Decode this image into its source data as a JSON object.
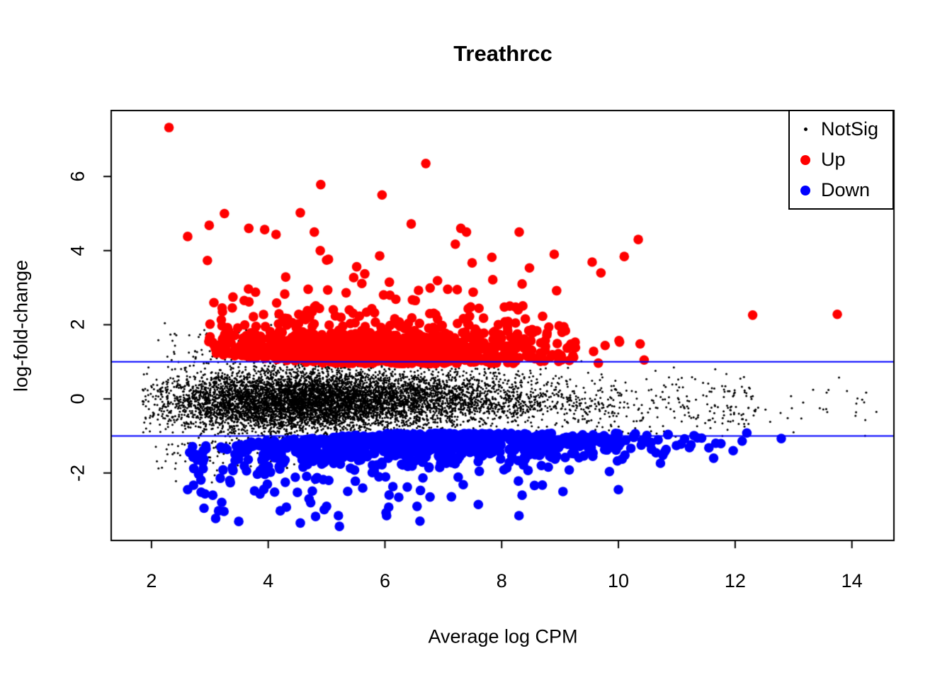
{
  "chart_data": {
    "type": "scatter",
    "title": "Treathrcc",
    "xlabel": "Average log CPM",
    "ylabel": "log-fold-change",
    "x_axis": {
      "range": [
        1.31,
        14.72
      ],
      "ticks": [
        2,
        4,
        6,
        8,
        10,
        12,
        14
      ],
      "tick_labels": [
        "2",
        "4",
        "6",
        "8",
        "10",
        "12",
        "14"
      ]
    },
    "y_axis": {
      "range": [
        -3.82,
        7.78
      ],
      "ticks": [
        -2,
        0,
        2,
        4,
        6
      ],
      "tick_labels": [
        "-2",
        "0",
        "2",
        "4",
        "6"
      ]
    },
    "grid": false,
    "background": "#ffffff",
    "box_color": "#000000",
    "hlines": {
      "values": [
        1,
        -1
      ],
      "color": "#0000ff",
      "width": 2
    },
    "legend": {
      "position": "topright",
      "entries": [
        {
          "label": "NotSig",
          "color": "#000000",
          "marker_diameter": 5
        },
        {
          "label": "Up",
          "color": "#ff0000",
          "marker_diameter": 14
        },
        {
          "label": "Down",
          "color": "#0000ff",
          "marker_diameter": 14
        }
      ]
    },
    "seed": 42,
    "series": [
      {
        "name": "NotSig",
        "color": "#000000",
        "marker_radius": 1.5,
        "clouds": [
          {
            "count": 5200,
            "x": {
              "dist": "normal",
              "mean": 4.35,
              "sd": 1.15,
              "min": 1.85,
              "max": 8.6
            },
            "y": {
              "dist": "normal",
              "mean": -0.05,
              "sd": 0.42,
              "min": -1.5,
              "max": 1.5
            }
          },
          {
            "count": 2100,
            "x": {
              "dist": "normal",
              "mean": 6.6,
              "sd": 1.35,
              "min": 4.2,
              "max": 10.4
            },
            "y": {
              "dist": "normal",
              "mean": 0,
              "sd": 0.36,
              "min": -1.05,
              "max": 1.05
            }
          },
          {
            "count": 300,
            "x": {
              "dist": "uniform",
              "min": 8.2,
              "max": 12.4
            },
            "y": {
              "dist": "normal",
              "mean": -0.2,
              "sd": 0.4,
              "min": -1.05,
              "max": 0.85
            }
          },
          {
            "count": 34,
            "x": {
              "dist": "uniform",
              "min": 11.5,
              "max": 14.55
            },
            "y": {
              "dist": "normal",
              "mean": -0.25,
              "sd": 0.35,
              "min": -1.05,
              "max": 0.7
            }
          },
          {
            "count": 130,
            "x": {
              "dist": "normal",
              "mean": 3.5,
              "sd": 0.85,
              "min": 2.1,
              "max": 6.2
            },
            "edge": {
              "side": 1,
              "base": 1.0,
              "lift_x0": 3.5,
              "lift_k": 0.1
            },
            "y": {
              "dist": "halfnormal",
              "sd": 0.42,
              "max": 1.6
            }
          },
          {
            "count": 170,
            "x": {
              "dist": "normal",
              "mean": 3.5,
              "sd": 0.95,
              "min": 2.05,
              "max": 6.5
            },
            "edge": {
              "side": -1,
              "base": 1.0,
              "lift_x0": 4.0,
              "lift_k": 0.12
            },
            "y": {
              "dist": "halfnormal",
              "sd": 0.45,
              "max": 1.7
            }
          }
        ],
        "points": [
          [
            14.42,
            -0.35
          ],
          [
            14.23,
            -0.57
          ],
          [
            13.45,
            -0.25
          ],
          [
            12.6,
            -0.62
          ],
          [
            11.85,
            0.67
          ],
          [
            12.35,
            -0.29
          ],
          [
            12.52,
            -0.29
          ],
          [
            12.9,
            -0.52
          ],
          [
            13.0,
            -0.9
          ],
          [
            1.86,
            -0.9
          ]
        ]
      },
      {
        "name": "Up",
        "color": "#ff0000",
        "marker_radius": 6.8,
        "clouds": [
          {
            "count": 850,
            "x": {
              "dist": "normal",
              "mean": 5.7,
              "sd": 1.55,
              "min": 2.95,
              "max": 10.45
            },
            "edge": {
              "side": 1,
              "base": 0.95,
              "lift_x0": 4.9,
              "lift_k": 0.14
            },
            "y": {
              "dist": "halfnormal",
              "sd": 0.4,
              "max": 1.5
            }
          },
          {
            "count": 240,
            "x": {
              "dist": "normal",
              "mean": 5.9,
              "sd": 1.75,
              "min": 2.6,
              "max": 10.4
            },
            "edge": {
              "side": 1,
              "base": 1.3,
              "lift_x0": 4.5,
              "lift_k": 0.12
            },
            "y": {
              "dist": "exp",
              "scale": 0.75,
              "max": 3.2
            }
          }
        ],
        "points": [
          [
            2.3,
            7.32
          ],
          [
            6.7,
            6.35
          ],
          [
            4.9,
            5.78
          ],
          [
            5.95,
            5.5
          ],
          [
            4.55,
            5.02
          ],
          [
            3.25,
            5.0
          ],
          [
            6.45,
            4.72
          ],
          [
            7.3,
            4.6
          ],
          [
            8.3,
            4.5
          ],
          [
            10.34,
            4.3
          ],
          [
            8.9,
            3.9
          ],
          [
            10.1,
            3.84
          ],
          [
            9.55,
            3.69
          ],
          [
            2.62,
            4.38
          ],
          [
            9.7,
            3.4
          ],
          [
            8.35,
            3.1
          ],
          [
            12.3,
            2.26
          ],
          [
            13.75,
            2.28
          ]
        ]
      },
      {
        "name": "Down",
        "color": "#0000ff",
        "marker_radius": 6.8,
        "clouds": [
          {
            "count": 760,
            "x": {
              "dist": "normal",
              "mean": 6.9,
              "sd": 2.05,
              "min": 2.65,
              "max": 12.0
            },
            "edge": {
              "side": -1,
              "base": 0.93,
              "lift_x0": 6.0,
              "lift_k": 0.1
            },
            "y": {
              "dist": "halfnormal",
              "sd": 0.34,
              "max": 1.6
            }
          },
          {
            "count": 110,
            "x": {
              "dist": "normal",
              "mean": 5.6,
              "sd": 1.9,
              "min": 2.8,
              "max": 10.8
            },
            "edge": {
              "side": -1,
              "base": 1.45,
              "lift_x0": 5.0,
              "lift_k": 0.12
            },
            "y": {
              "dist": "exp",
              "scale": 0.5,
              "max": 1.7
            }
          }
        ],
        "points": [
          [
            2.9,
            -2.95
          ],
          [
            3.15,
            -3.02
          ],
          [
            4.55,
            -3.35
          ],
          [
            5.22,
            -3.44
          ],
          [
            3.05,
            -2.6
          ],
          [
            2.62,
            -2.45
          ],
          [
            2.72,
            -2.33
          ],
          [
            6.6,
            -3.3
          ],
          [
            6.55,
            -2.9
          ],
          [
            5.0,
            -2.9
          ],
          [
            7.6,
            -2.85
          ],
          [
            9.05,
            -2.5
          ],
          [
            10.0,
            -2.45
          ],
          [
            8.35,
            -2.6
          ],
          [
            11.55,
            -1.32
          ],
          [
            12.2,
            -0.92
          ],
          [
            12.12,
            -1.14
          ],
          [
            12.79,
            -1.07
          ]
        ]
      }
    ]
  }
}
